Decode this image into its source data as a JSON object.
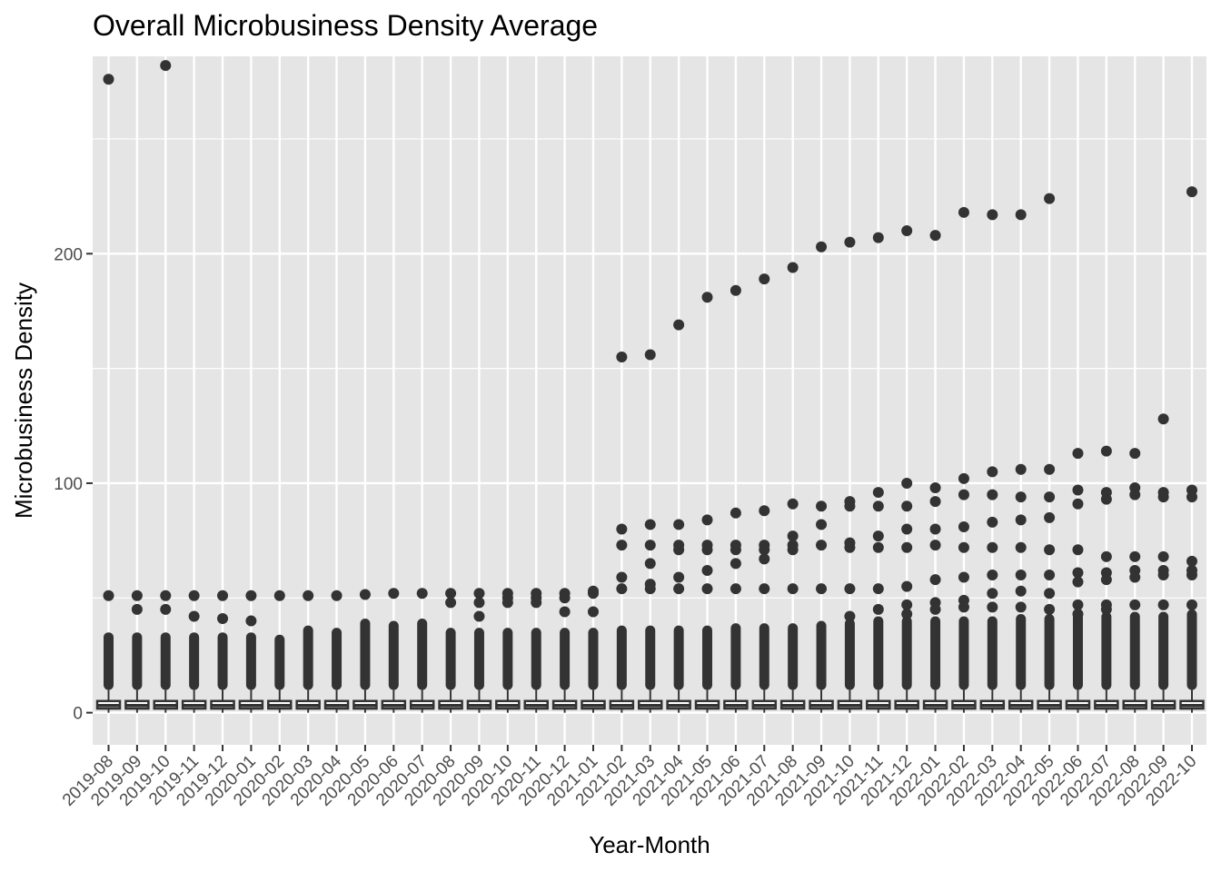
{
  "chart_data": {
    "type": "box",
    "title": "Overall Microbusiness Density Average",
    "xlabel": "Year-Month",
    "ylabel": "Microbusiness Density",
    "ylim": [
      -14,
      286
    ],
    "yticks": [
      0,
      100,
      200
    ],
    "grid": true,
    "legend": "none",
    "colors": {
      "panel": "#e5e5e5",
      "grid": "#ffffff",
      "points": "#333333",
      "box_fill": "#ffffff",
      "box_line": "#333333"
    },
    "categories": [
      "2019-08",
      "2019-09",
      "2019-10",
      "2019-11",
      "2019-12",
      "2020-01",
      "2020-02",
      "2020-03",
      "2020-04",
      "2020-05",
      "2020-06",
      "2020-07",
      "2020-08",
      "2020-09",
      "2020-10",
      "2020-11",
      "2020-12",
      "2021-01",
      "2021-02",
      "2021-03",
      "2021-04",
      "2021-05",
      "2021-06",
      "2021-07",
      "2021-08",
      "2021-09",
      "2021-10",
      "2021-11",
      "2021-12",
      "2022-01",
      "2022-02",
      "2022-03",
      "2022-04",
      "2022-05",
      "2022-06",
      "2022-07",
      "2022-08",
      "2022-09",
      "2022-10"
    ],
    "box_stats": {
      "lower_whisker": 0.0,
      "q1": 1.8,
      "median": 3.1,
      "q3": 5.1,
      "upper_whisker": 9.9
    },
    "dense_outlier_max": [
      35,
      35,
      35,
      35,
      35,
      35,
      34,
      38,
      37,
      41,
      40,
      41,
      37,
      37,
      37,
      37,
      37,
      37,
      38,
      38,
      38,
      38,
      39,
      39,
      39,
      40,
      41,
      42,
      42,
      42,
      42,
      42,
      43,
      43,
      44,
      44,
      44,
      44,
      45
    ],
    "outliers": [
      [
        276,
        51
      ],
      [
        51,
        45
      ],
      [
        282,
        51,
        45
      ],
      [
        51,
        42
      ],
      [
        51,
        41
      ],
      [
        51,
        40
      ],
      [
        51
      ],
      [
        51
      ],
      [
        51
      ],
      [
        51.5
      ],
      [
        52
      ],
      [
        52
      ],
      [
        52,
        48
      ],
      [
        52,
        48,
        42
      ],
      [
        52,
        50,
        48
      ],
      [
        52,
        50,
        48
      ],
      [
        52,
        50,
        44
      ],
      [
        53,
        52,
        44
      ],
      [
        155,
        80,
        73,
        59,
        54
      ],
      [
        156,
        82,
        73,
        65,
        56,
        54
      ],
      [
        169,
        82,
        73,
        71,
        59,
        54
      ],
      [
        181,
        84,
        73,
        71,
        62,
        54
      ],
      [
        184,
        87,
        73,
        71,
        65,
        54
      ],
      [
        189,
        88,
        73,
        71,
        67,
        54
      ],
      [
        194,
        91,
        77,
        73,
        71,
        54
      ],
      [
        203,
        90,
        82,
        73,
        54
      ],
      [
        205,
        92,
        90,
        74,
        72,
        54,
        42
      ],
      [
        207,
        96,
        90,
        77,
        72,
        54,
        45
      ],
      [
        210,
        100,
        90,
        80,
        72,
        55,
        47,
        43
      ],
      [
        208,
        98,
        92,
        80,
        73,
        58,
        48,
        45
      ],
      [
        218,
        102,
        95,
        81,
        72,
        59,
        49,
        46
      ],
      [
        217,
        105,
        95,
        83,
        72,
        60,
        52,
        46
      ],
      [
        217,
        106,
        94,
        84,
        72,
        60,
        53,
        46
      ],
      [
        224,
        106,
        94,
        85,
        71,
        60,
        52,
        45
      ],
      [
        113,
        97,
        91,
        71,
        61,
        57,
        47,
        43
      ],
      [
        114,
        96,
        93,
        68,
        61,
        58,
        47,
        45
      ],
      [
        113,
        98,
        95,
        68,
        62,
        59,
        47
      ],
      [
        128,
        96,
        94,
        68,
        62,
        60,
        47
      ],
      [
        227,
        97,
        94,
        66,
        62,
        60,
        47
      ]
    ]
  }
}
